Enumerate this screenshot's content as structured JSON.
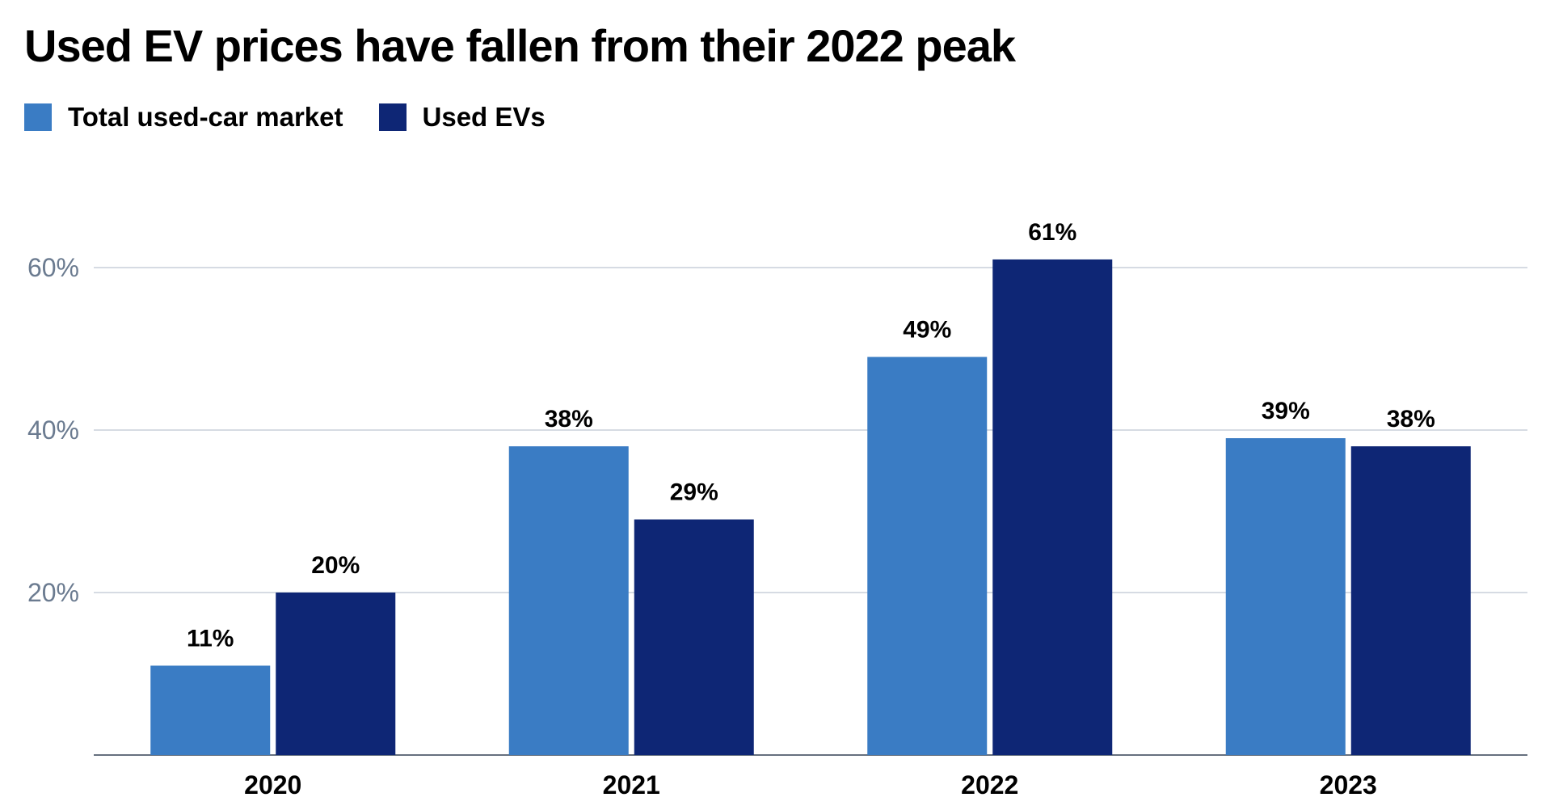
{
  "chart_data": {
    "type": "bar",
    "title": "Used EV prices have fallen from their 2022 peak",
    "categories": [
      "2020",
      "2021",
      "2022",
      "2023"
    ],
    "series": [
      {
        "name": "Total used-car market",
        "color": "#3a7cc4",
        "values": [
          11,
          38,
          49,
          39
        ]
      },
      {
        "name": "Used EVs",
        "color": "#0e2675",
        "values": [
          20,
          29,
          61,
          38
        ]
      }
    ],
    "yticks": [
      20,
      40,
      60
    ],
    "ytick_labels": [
      "20%",
      "40%",
      "60%"
    ],
    "data_labels": [
      [
        "11%",
        "38%",
        "49%",
        "39%"
      ],
      [
        "20%",
        "29%",
        "61%",
        "38%"
      ]
    ],
    "ylim": [
      0,
      70
    ],
    "grid": true,
    "legend_position": "top-left"
  }
}
